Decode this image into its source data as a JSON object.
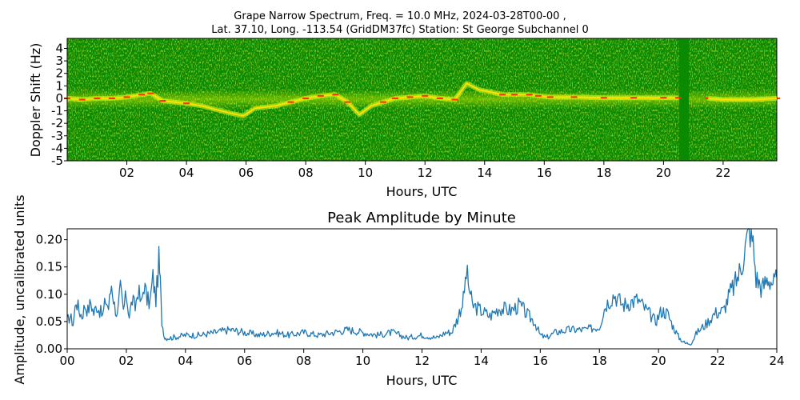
{
  "figure": {
    "title_line1": "Grape Narrow Spectrum, Freq. = 10.0 MHz, 2024-03-28T00-00 ,",
    "title_line2": "Lat.  37.10, Long. -113.54 (GridDM37fc) Station: St George Subchannel 0"
  },
  "chart_data": [
    {
      "type": "heatmap",
      "title": "",
      "xlabel": "Hours, UTC",
      "ylabel": "Doppler Shift (Hz)",
      "xlim": [
        0,
        23.8
      ],
      "ylim": [
        -5,
        4.8
      ],
      "x_ticks": [
        2,
        4,
        6,
        8,
        10,
        12,
        14,
        16,
        18,
        20,
        22
      ],
      "x_tick_labels": [
        "02",
        "04",
        "06",
        "08",
        "10",
        "12",
        "14",
        "16",
        "18",
        "20",
        "22"
      ],
      "y_ticks": [
        4,
        3,
        2,
        1,
        0,
        -1,
        -2,
        -3,
        -4,
        -5
      ],
      "y_tick_labels": [
        "4",
        "3",
        "2",
        "1",
        "0",
        "-1",
        "-2",
        "-3",
        "-4",
        "-5"
      ],
      "colors": {
        "background": "#0a8a00",
        "noise": "#c8e600",
        "signal": "#ffff30",
        "peak": "#ff3000"
      },
      "trace": {
        "hours": [
          0,
          0.5,
          1,
          1.5,
          2,
          2.5,
          2.8,
          3.2,
          4,
          4.5,
          5,
          5.5,
          5.9,
          6.3,
          7,
          7.5,
          8,
          8.5,
          9,
          9.4,
          9.8,
          10.2,
          10.6,
          11,
          11.5,
          12,
          12.5,
          13,
          13.4,
          13.8,
          14.2,
          14.6,
          15,
          15.5,
          15.8,
          16.2,
          17,
          18,
          19,
          20,
          20.5,
          20.9,
          21.5,
          22,
          23,
          23.8
        ],
        "doppler_hz": [
          0,
          -0.1,
          0,
          0,
          0.1,
          0.3,
          0.4,
          -0.2,
          -0.4,
          -0.6,
          -0.9,
          -1.2,
          -1.4,
          -0.8,
          -0.6,
          -0.3,
          0,
          0.2,
          0.3,
          -0.3,
          -1.3,
          -0.6,
          -0.3,
          0,
          0.1,
          0.2,
          0,
          -0.1,
          1.2,
          0.7,
          0.5,
          0.3,
          0.3,
          0.3,
          0.2,
          0.1,
          0.1,
          0.05,
          0.05,
          0.05,
          0.05,
          null,
          0,
          -0.1,
          -0.1,
          0
        ]
      }
    },
    {
      "type": "line",
      "title": "Peak Amplitude by Minute",
      "xlabel": "Hours, UTC",
      "ylabel": "Amplitude, uncalibrated units",
      "xlim": [
        0,
        24
      ],
      "ylim": [
        0,
        0.22
      ],
      "x_ticks": [
        0,
        2,
        4,
        6,
        8,
        10,
        12,
        14,
        16,
        18,
        20,
        22,
        24
      ],
      "x_tick_labels": [
        "00",
        "02",
        "04",
        "06",
        "08",
        "10",
        "12",
        "14",
        "16",
        "18",
        "20",
        "22",
        "24"
      ],
      "y_ticks": [
        0,
        0.05,
        0.1,
        0.15,
        0.2
      ],
      "y_tick_labels": [
        "0.00",
        "0.05",
        "0.10",
        "0.15",
        "0.20"
      ],
      "series": [
        {
          "color": "#1f77b4",
          "x": [
            0,
            0.1,
            0.2,
            0.3,
            0.4,
            0.5,
            0.6,
            0.7,
            0.8,
            0.9,
            1.0,
            1.1,
            1.2,
            1.3,
            1.4,
            1.5,
            1.6,
            1.7,
            1.8,
            1.9,
            2.0,
            2.1,
            2.2,
            2.3,
            2.4,
            2.5,
            2.6,
            2.7,
            2.8,
            2.9,
            3.0,
            3.1,
            3.15,
            3.2,
            3.3,
            3.5,
            4.0,
            4.5,
            5.0,
            5.5,
            6.0,
            6.5,
            7.0,
            7.5,
            8.0,
            8.5,
            9.0,
            9.5,
            10.0,
            10.5,
            11.0,
            11.5,
            12.0,
            12.5,
            12.8,
            13.0,
            13.2,
            13.4,
            13.5,
            13.7,
            14.0,
            14.3,
            14.6,
            15.0,
            15.3,
            15.6,
            15.8,
            16.0,
            16.2,
            16.5,
            17.0,
            17.5,
            18.0,
            18.2,
            18.5,
            18.8,
            19.0,
            19.3,
            19.6,
            19.9,
            20.1,
            20.3,
            20.5,
            20.7,
            20.9,
            21.1,
            21.3,
            21.6,
            21.9,
            22.2,
            22.4,
            22.6,
            22.8,
            22.9,
            23.0,
            23.1,
            23.2,
            23.3,
            23.4,
            23.5,
            23.7,
            23.9,
            24.0
          ],
          "values": [
            0.05,
            0.06,
            0.045,
            0.09,
            0.07,
            0.06,
            0.08,
            0.07,
            0.085,
            0.065,
            0.08,
            0.07,
            0.06,
            0.09,
            0.075,
            0.12,
            0.08,
            0.06,
            0.11,
            0.07,
            0.1,
            0.06,
            0.09,
            0.075,
            0.11,
            0.08,
            0.12,
            0.09,
            0.085,
            0.13,
            0.09,
            0.16,
            0.12,
            0.05,
            0.02,
            0.02,
            0.025,
            0.025,
            0.03,
            0.035,
            0.03,
            0.025,
            0.03,
            0.025,
            0.03,
            0.025,
            0.03,
            0.035,
            0.03,
            0.025,
            0.03,
            0.02,
            0.025,
            0.02,
            0.03,
            0.03,
            0.055,
            0.09,
            0.14,
            0.08,
            0.07,
            0.06,
            0.075,
            0.07,
            0.08,
            0.06,
            0.05,
            0.025,
            0.02,
            0.03,
            0.035,
            0.035,
            0.04,
            0.08,
            0.1,
            0.08,
            0.085,
            0.09,
            0.07,
            0.05,
            0.07,
            0.065,
            0.04,
            0.02,
            0.01,
            0.01,
            0.03,
            0.045,
            0.065,
            0.07,
            0.1,
            0.12,
            0.15,
            0.18,
            0.2,
            0.22,
            0.19,
            0.13,
            0.12,
            0.11,
            0.13,
            0.12,
            0.13
          ]
        }
      ]
    }
  ]
}
